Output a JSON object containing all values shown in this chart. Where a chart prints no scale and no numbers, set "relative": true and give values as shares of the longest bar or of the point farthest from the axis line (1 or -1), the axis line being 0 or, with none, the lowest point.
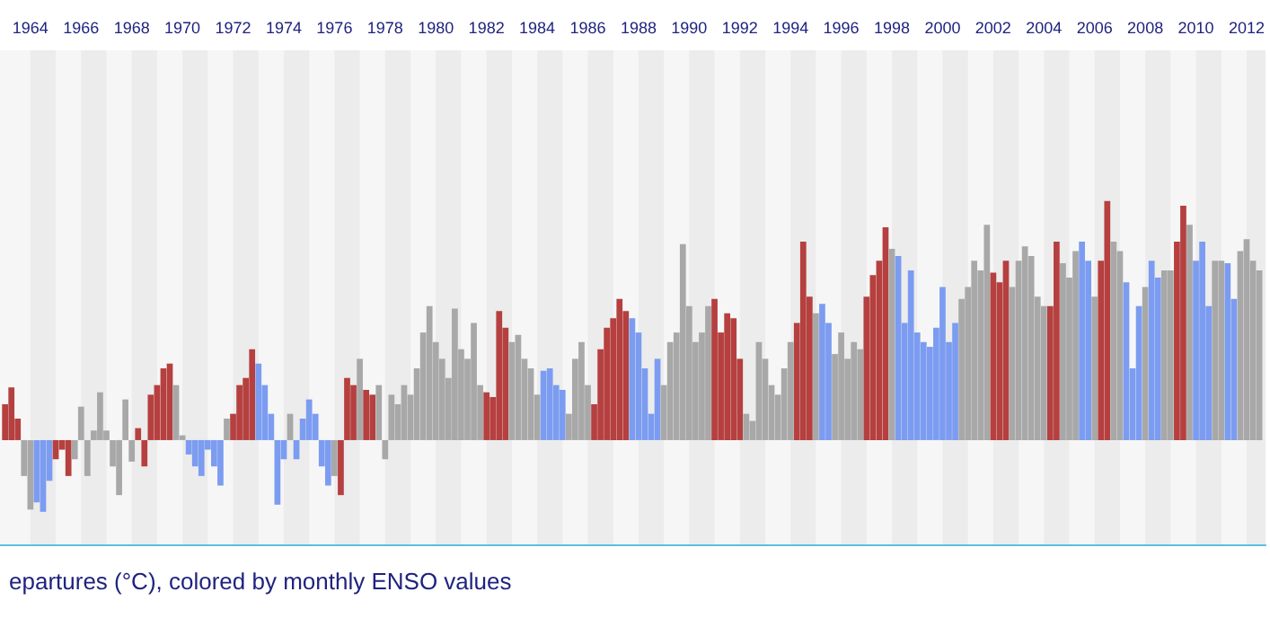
{
  "chart_data": {
    "type": "bar",
    "title": "epartures (°C), colored by monthly ENSO values",
    "relative": true,
    "x": [
      1963,
      1963.25,
      1963.5,
      1963.75,
      1964,
      1964.25,
      1964.5,
      1964.75,
      1965,
      1965.25,
      1965.5,
      1965.75,
      1966,
      1966.25,
      1966.5,
      1966.75,
      1967,
      1967.25,
      1967.5,
      1967.75,
      1968,
      1968.25,
      1968.5,
      1968.75,
      1969,
      1969.25,
      1969.5,
      1969.75,
      1970,
      1970.25,
      1970.5,
      1970.75,
      1971,
      1971.25,
      1971.5,
      1971.75,
      1972,
      1972.25,
      1972.5,
      1972.75,
      1973,
      1973.25,
      1973.5,
      1973.75,
      1974,
      1974.25,
      1974.5,
      1974.75,
      1975,
      1975.25,
      1975.5,
      1975.75,
      1976,
      1976.25,
      1976.5,
      1976.75,
      1977,
      1977.25,
      1977.5,
      1977.75,
      1978,
      1978.25,
      1978.5,
      1978.75,
      1979,
      1979.25,
      1979.5,
      1979.75,
      1980,
      1980.25,
      1980.5,
      1980.75,
      1981,
      1981.25,
      1981.5,
      1981.75,
      1982,
      1982.25,
      1982.5,
      1982.75,
      1983,
      1983.25,
      1983.5,
      1983.75,
      1984,
      1984.25,
      1984.5,
      1984.75,
      1985,
      1985.25,
      1985.5,
      1985.75,
      1986,
      1986.25,
      1986.5,
      1986.75,
      1987,
      1987.25,
      1987.5,
      1987.75,
      1988,
      1988.25,
      1988.5,
      1988.75,
      1989,
      1989.25,
      1989.5,
      1989.75,
      1990,
      1990.25,
      1990.5,
      1990.75,
      1991,
      1991.25,
      1991.5,
      1991.75,
      1992,
      1992.25,
      1992.5,
      1992.75,
      1993,
      1993.25,
      1993.5,
      1993.75,
      1994,
      1994.25,
      1994.5,
      1994.75,
      1995,
      1995.25,
      1995.5,
      1995.75,
      1996,
      1996.25,
      1996.5,
      1996.75,
      1997,
      1997.25,
      1997.5,
      1997.75,
      1998,
      1998.25,
      1998.5,
      1998.75,
      1999,
      1999.25,
      1999.5,
      1999.75,
      2000,
      2000.25,
      2000.5,
      2000.75,
      2001,
      2001.25,
      2001.5,
      2001.75,
      2002,
      2002.25,
      2002.5,
      2002.75,
      2003,
      2003.25,
      2003.5,
      2003.75,
      2004,
      2004.25,
      2004.5,
      2004.75,
      2005,
      2005.25,
      2005.5,
      2005.75,
      2006,
      2006.25,
      2006.5,
      2006.75,
      2007,
      2007.25,
      2007.5,
      2007.75,
      2008,
      2008.25,
      2008.5,
      2008.75,
      2009,
      2009.25,
      2009.5,
      2009.75,
      2010,
      2010.25,
      2010.5,
      2010.75,
      2011,
      2011.25,
      2011.5,
      2011.75,
      2012,
      2012.25,
      2012.5
    ],
    "values": [
      0.15,
      0.22,
      0.09,
      -0.15,
      -0.29,
      -0.26,
      -0.3,
      -0.17,
      -0.08,
      -0.04,
      -0.15,
      -0.08,
      0.14,
      -0.15,
      0.04,
      0.2,
      0.04,
      -0.11,
      -0.23,
      0.17,
      -0.09,
      0.05,
      -0.11,
      0.19,
      0.23,
      0.3,
      0.32,
      0.23,
      0.02,
      -0.06,
      -0.11,
      -0.15,
      -0.04,
      -0.11,
      -0.19,
      0.09,
      0.11,
      0.23,
      0.26,
      0.38,
      0.32,
      0.23,
      0.11,
      -0.27,
      -0.08,
      0.11,
      -0.08,
      0.09,
      0.17,
      0.11,
      -0.11,
      -0.19,
      -0.15,
      -0.23,
      0.26,
      0.23,
      0.34,
      0.21,
      0.19,
      0.23,
      -0.08,
      0.19,
      0.15,
      0.23,
      0.19,
      0.3,
      0.45,
      0.56,
      0.41,
      0.34,
      0.26,
      0.55,
      0.38,
      0.34,
      0.49,
      0.23,
      0.2,
      0.18,
      0.54,
      0.47,
      0.41,
      0.44,
      0.34,
      0.3,
      0.19,
      0.29,
      0.3,
      0.23,
      0.21,
      0.11,
      0.34,
      0.41,
      0.23,
      0.15,
      0.38,
      0.47,
      0.51,
      0.59,
      0.54,
      0.51,
      0.45,
      0.3,
      0.11,
      0.34,
      0.23,
      0.41,
      0.45,
      0.82,
      0.56,
      0.41,
      0.45,
      0.56,
      0.59,
      0.45,
      0.53,
      0.51,
      0.34,
      0.11,
      0.08,
      0.41,
      0.34,
      0.23,
      0.19,
      0.3,
      0.41,
      0.49,
      0.83,
      0.6,
      0.53,
      0.57,
      0.49,
      0.36,
      0.45,
      0.34,
      0.41,
      0.38,
      0.6,
      0.69,
      0.75,
      0.89,
      0.8,
      0.77,
      0.49,
      0.71,
      0.45,
      0.41,
      0.39,
      0.47,
      0.64,
      0.41,
      0.49,
      0.59,
      0.64,
      0.75,
      0.71,
      0.9,
      0.7,
      0.66,
      0.75,
      0.64,
      0.75,
      0.81,
      0.77,
      0.6,
      0.56,
      0.56,
      0.83,
      0.74,
      0.68,
      0.79,
      0.83,
      0.75,
      0.6,
      0.75,
      1,
      0.83,
      0.79,
      0.66,
      0.3,
      0.56,
      0.64,
      0.75,
      0.68,
      0.71,
      0.71,
      0.83,
      0.98,
      0.9,
      0.75,
      0.83,
      0.56,
      0.75,
      0.75,
      0.74,
      0.59,
      0.79,
      0.84,
      0.75,
      0.71
    ],
    "colors": [
      "#b5403f",
      "#b5403f",
      "#b5403f",
      "#a8a8a8",
      "#a8a8a8",
      "#7b9cf0",
      "#7b9cf0",
      "#7b9cf0",
      "#b5403f",
      "#b5403f",
      "#b5403f",
      "#a8a8a8",
      "#a8a8a8",
      "#a8a8a8",
      "#a8a8a8",
      "#a8a8a8",
      "#a8a8a8",
      "#a8a8a8",
      "#a8a8a8",
      "#a8a8a8",
      "#a8a8a8",
      "#b5403f",
      "#b5403f",
      "#b5403f",
      "#b5403f",
      "#b5403f",
      "#b5403f",
      "#a8a8a8",
      "#a8a8a8",
      "#7b9cf0",
      "#7b9cf0",
      "#7b9cf0",
      "#7b9cf0",
      "#7b9cf0",
      "#7b9cf0",
      "#a8a8a8",
      "#b5403f",
      "#b5403f",
      "#b5403f",
      "#b5403f",
      "#7b9cf0",
      "#7b9cf0",
      "#7b9cf0",
      "#7b9cf0",
      "#7b9cf0",
      "#a8a8a8",
      "#7b9cf0",
      "#7b9cf0",
      "#7b9cf0",
      "#7b9cf0",
      "#7b9cf0",
      "#7b9cf0",
      "#a8a8a8",
      "#b5403f",
      "#b5403f",
      "#b5403f",
      "#a8a8a8",
      "#b5403f",
      "#b5403f",
      "#a8a8a8",
      "#a8a8a8",
      "#a8a8a8",
      "#a8a8a8",
      "#a8a8a8",
      "#a8a8a8",
      "#a8a8a8",
      "#a8a8a8",
      "#a8a8a8",
      "#a8a8a8",
      "#a8a8a8",
      "#a8a8a8",
      "#a8a8a8",
      "#a8a8a8",
      "#a8a8a8",
      "#a8a8a8",
      "#a8a8a8",
      "#b5403f",
      "#b5403f",
      "#b5403f",
      "#b5403f",
      "#a8a8a8",
      "#a8a8a8",
      "#a8a8a8",
      "#a8a8a8",
      "#a8a8a8",
      "#7b9cf0",
      "#7b9cf0",
      "#7b9cf0",
      "#7b9cf0",
      "#a8a8a8",
      "#a8a8a8",
      "#a8a8a8",
      "#a8a8a8",
      "#b5403f",
      "#b5403f",
      "#b5403f",
      "#b5403f",
      "#b5403f",
      "#b5403f",
      "#7b9cf0",
      "#7b9cf0",
      "#7b9cf0",
      "#7b9cf0",
      "#7b9cf0",
      "#a8a8a8",
      "#a8a8a8",
      "#a8a8a8",
      "#a8a8a8",
      "#a8a8a8",
      "#a8a8a8",
      "#a8a8a8",
      "#a8a8a8",
      "#b5403f",
      "#b5403f",
      "#b5403f",
      "#b5403f",
      "#b5403f",
      "#a8a8a8",
      "#a8a8a8",
      "#a8a8a8",
      "#a8a8a8",
      "#a8a8a8",
      "#a8a8a8",
      "#a8a8a8",
      "#a8a8a8",
      "#b5403f",
      "#b5403f",
      "#b5403f",
      "#a8a8a8",
      "#7b9cf0",
      "#7b9cf0",
      "#a8a8a8",
      "#a8a8a8",
      "#a8a8a8",
      "#a8a8a8",
      "#a8a8a8",
      "#b5403f",
      "#b5403f",
      "#b5403f",
      "#b5403f",
      "#a8a8a8",
      "#7b9cf0",
      "#7b9cf0",
      "#7b9cf0",
      "#7b9cf0",
      "#7b9cf0",
      "#7b9cf0",
      "#7b9cf0",
      "#7b9cf0",
      "#7b9cf0",
      "#7b9cf0",
      "#a8a8a8",
      "#a8a8a8",
      "#a8a8a8",
      "#a8a8a8",
      "#a8a8a8",
      "#b5403f",
      "#b5403f",
      "#b5403f",
      "#a8a8a8",
      "#a8a8a8",
      "#a8a8a8",
      "#a8a8a8",
      "#a8a8a8",
      "#a8a8a8",
      "#b5403f",
      "#b5403f",
      "#a8a8a8",
      "#a8a8a8",
      "#a8a8a8",
      "#7b9cf0",
      "#7b9cf0",
      "#a8a8a8",
      "#b5403f",
      "#b5403f",
      "#a8a8a8",
      "#a8a8a8",
      "#7b9cf0",
      "#7b9cf0",
      "#7b9cf0",
      "#a8a8a8",
      "#7b9cf0",
      "#7b9cf0",
      "#a8a8a8",
      "#a8a8a8",
      "#b5403f",
      "#b5403f",
      "#a8a8a8",
      "#7b9cf0",
      "#7b9cf0",
      "#7b9cf0",
      "#a8a8a8",
      "#a8a8a8",
      "#7b9cf0",
      "#7b9cf0",
      "#a8a8a8",
      "#a8a8a8",
      "#a8a8a8",
      "#a8a8a8"
    ],
    "xlim": [
      1962.8,
      2012.75
    ],
    "xticks": [
      1964,
      1966,
      1968,
      1970,
      1972,
      1974,
      1976,
      1978,
      1980,
      1982,
      1984,
      1986,
      1988,
      1990,
      1992,
      1994,
      1996,
      1998,
      2000,
      2002,
      2004,
      2006,
      2008,
      2010,
      2012
    ],
    "bands": [
      {
        "axis": "x",
        "from": 1964,
        "to": 1965,
        "color": "#ececec"
      },
      {
        "axis": "x",
        "from": 1966,
        "to": 1967,
        "color": "#ececec"
      },
      {
        "axis": "x",
        "from": 1968,
        "to": 1969,
        "color": "#ececec"
      },
      {
        "axis": "x",
        "from": 1970,
        "to": 1971,
        "color": "#ececec"
      },
      {
        "axis": "x",
        "from": 1972,
        "to": 1973,
        "color": "#ececec"
      },
      {
        "axis": "x",
        "from": 1974,
        "to": 1975,
        "color": "#ececec"
      },
      {
        "axis": "x",
        "from": 1976,
        "to": 1977,
        "color": "#ececec"
      },
      {
        "axis": "x",
        "from": 1978,
        "to": 1979,
        "color": "#ececec"
      },
      {
        "axis": "x",
        "from": 1980,
        "to": 1981,
        "color": "#ececec"
      },
      {
        "axis": "x",
        "from": 1982,
        "to": 1983,
        "color": "#ececec"
      },
      {
        "axis": "x",
        "from": 1984,
        "to": 1985,
        "color": "#ececec"
      },
      {
        "axis": "x",
        "from": 1986,
        "to": 1987,
        "color": "#ececec"
      },
      {
        "axis": "x",
        "from": 1988,
        "to": 1989,
        "color": "#ececec"
      },
      {
        "axis": "x",
        "from": 1990,
        "to": 1991,
        "color": "#ececec"
      },
      {
        "axis": "x",
        "from": 1992,
        "to": 1993,
        "color": "#ececec"
      },
      {
        "axis": "x",
        "from": 1994,
        "to": 1995,
        "color": "#ececec"
      },
      {
        "axis": "x",
        "from": 1996,
        "to": 1997,
        "color": "#ececec"
      },
      {
        "axis": "x",
        "from": 1998,
        "to": 1999,
        "color": "#ececec"
      },
      {
        "axis": "x",
        "from": 2000,
        "to": 2001,
        "color": "#ececec"
      },
      {
        "axis": "x",
        "from": 2002,
        "to": 2003,
        "color": "#ececec"
      },
      {
        "axis": "x",
        "from": 2004,
        "to": 2005,
        "color": "#ececec"
      },
      {
        "axis": "x",
        "from": 2006,
        "to": 2007,
        "color": "#ececec"
      },
      {
        "axis": "x",
        "from": 2008,
        "to": 2009,
        "color": "#ececec"
      },
      {
        "axis": "x",
        "from": 2010,
        "to": 2011,
        "color": "#ececec"
      },
      {
        "axis": "x",
        "from": 2012,
        "to": 2012.75,
        "color": "#ececec"
      }
    ]
  }
}
